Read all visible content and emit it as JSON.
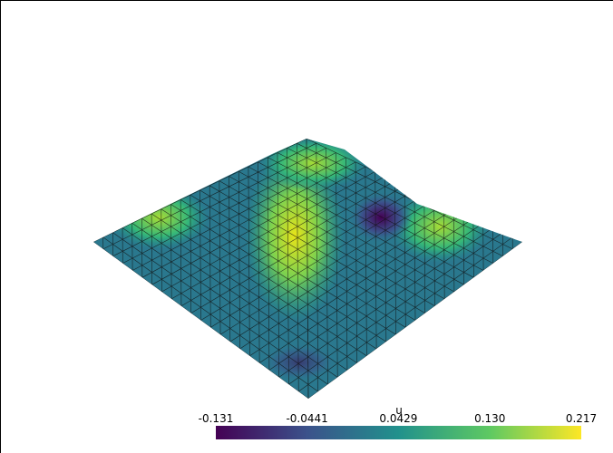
{
  "chart_data": {
    "type": "surface",
    "colorbar_title": "u",
    "colormap": "viridis",
    "clim": [
      -0.131,
      0.217
    ],
    "colorbar_ticks": [
      -0.131,
      -0.0441,
      0.0429,
      {
        "value": 0.13,
        "label": "0.130"
      },
      0.217
    ]
  }
}
